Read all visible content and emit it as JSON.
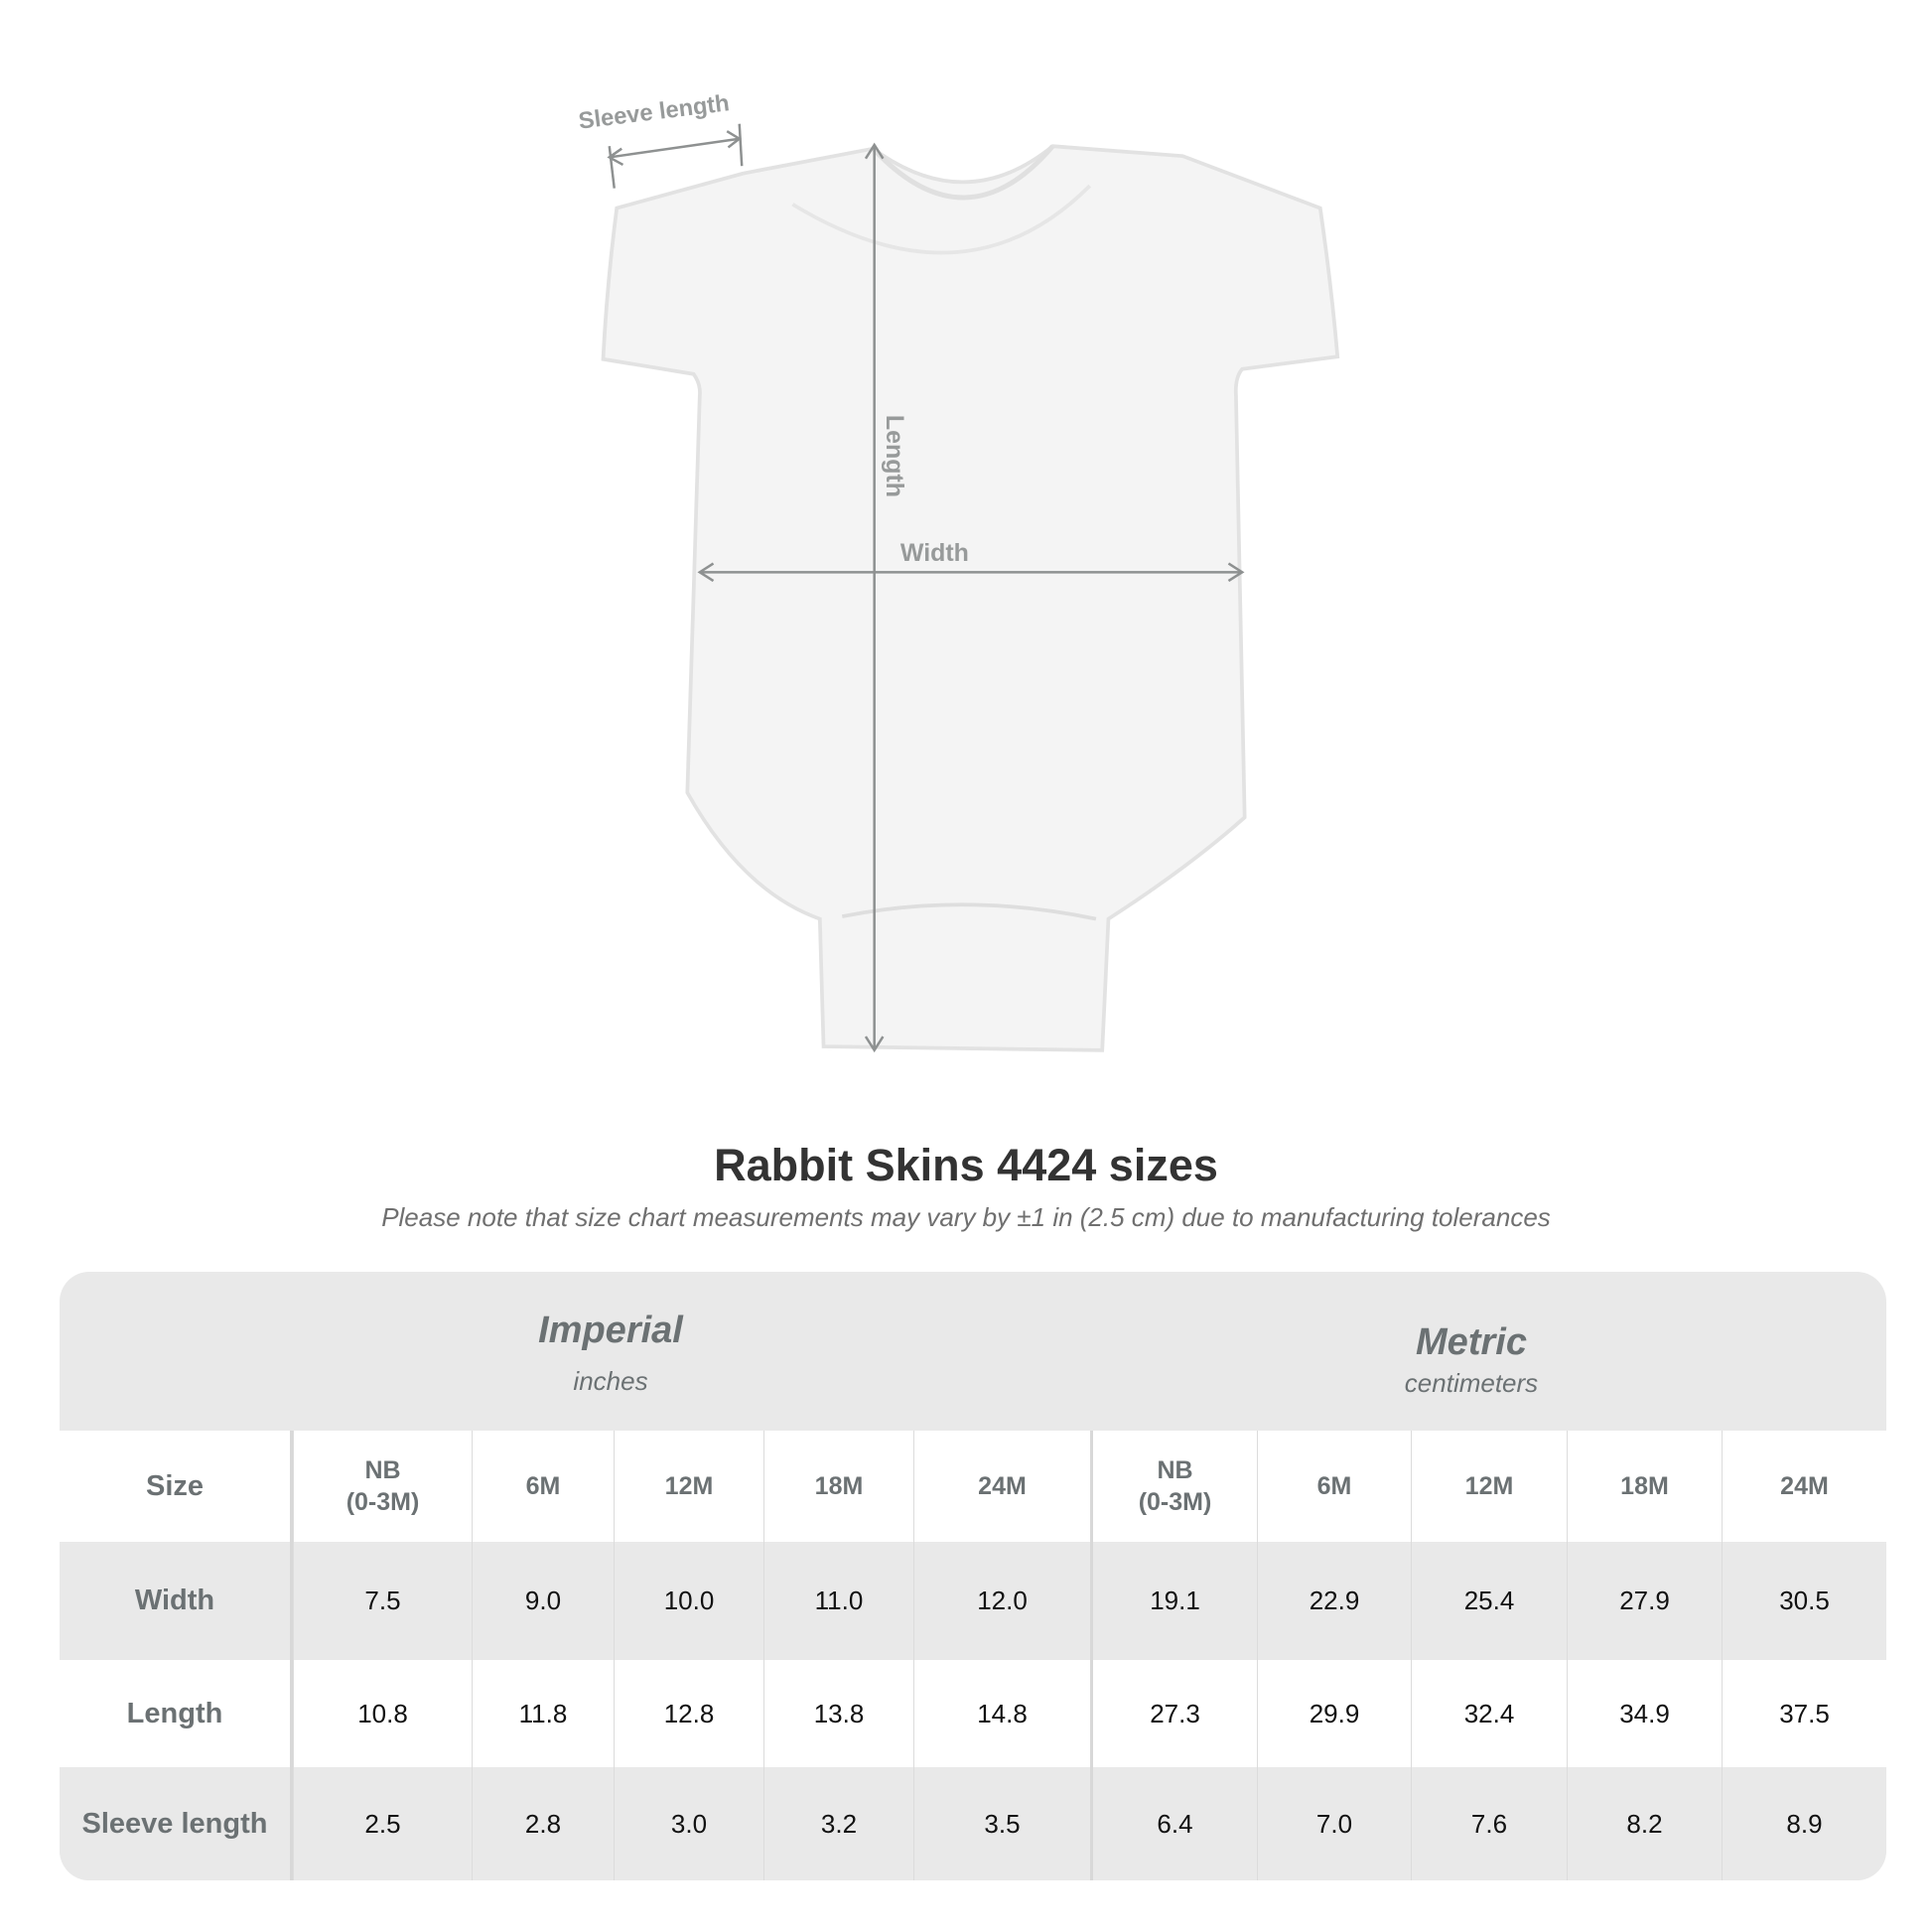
{
  "diagram": {
    "sleeve_label": "Sleeve length",
    "length_label": "Length",
    "width_label": "Width"
  },
  "title": "Rabbit Skins 4424 sizes",
  "subtitle": "Please note that size chart measurements may vary by ±1 in (2.5 cm) due to manufacturing tolerances",
  "table": {
    "imperial": {
      "name": "Imperial",
      "unit": "inches"
    },
    "metric": {
      "name": "Metric",
      "unit": "centimeters"
    },
    "size_label": "Size",
    "sizes": [
      "NB\n(0-3M)",
      "6M",
      "12M",
      "18M",
      "24M"
    ],
    "rows": [
      {
        "label": "Width",
        "imperial": [
          "7.5",
          "9.0",
          "10.0",
          "11.0",
          "12.0"
        ],
        "metric": [
          "19.1",
          "22.9",
          "25.4",
          "27.9",
          "30.5"
        ]
      },
      {
        "label": "Length",
        "imperial": [
          "10.8",
          "11.8",
          "12.8",
          "13.8",
          "14.8"
        ],
        "metric": [
          "27.3",
          "29.9",
          "32.4",
          "34.9",
          "37.5"
        ]
      },
      {
        "label": "Sleeve length",
        "imperial": [
          "2.5",
          "2.8",
          "3.0",
          "3.2",
          "3.5"
        ],
        "metric": [
          "6.4",
          "7.0",
          "7.6",
          "8.2",
          "8.9"
        ]
      }
    ]
  }
}
